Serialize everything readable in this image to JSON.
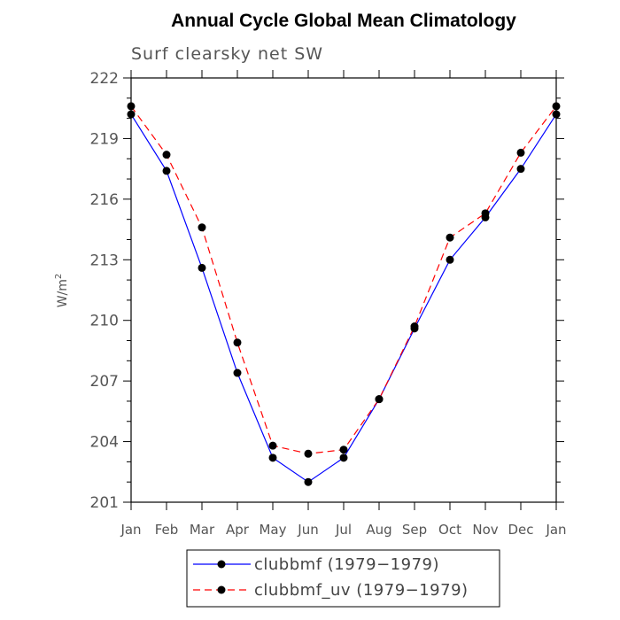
{
  "chart_data": {
    "type": "line",
    "title": "Annual Cycle Global Mean Climatology",
    "subtitle": "Surf clearsky net SW",
    "ylabel": "W/m",
    "ylabel_sup": "2",
    "xlabel": "",
    "categories": [
      "Jan",
      "Feb",
      "Mar",
      "Apr",
      "May",
      "Jun",
      "Jul",
      "Aug",
      "Sep",
      "Oct",
      "Nov",
      "Dec",
      "Jan"
    ],
    "ylim": [
      201,
      222
    ],
    "yticks": [
      201,
      204,
      207,
      210,
      213,
      216,
      219,
      222
    ],
    "grid": false,
    "legend_placement": "bottom-center",
    "series": [
      {
        "name": "clubbmf (1979−1979)",
        "color": "#0000ff",
        "dash": "solid",
        "values": [
          220.2,
          217.4,
          212.6,
          207.4,
          203.2,
          202.0,
          203.2,
          206.1,
          209.6,
          213.0,
          215.1,
          217.5,
          220.2
        ]
      },
      {
        "name": "clubbmf_uv (1979−1979)",
        "color": "#ff0000",
        "dash": "dashed",
        "values": [
          220.6,
          218.2,
          214.6,
          208.9,
          203.8,
          203.4,
          203.6,
          206.1,
          209.7,
          214.1,
          215.3,
          218.3,
          220.6
        ]
      }
    ]
  }
}
